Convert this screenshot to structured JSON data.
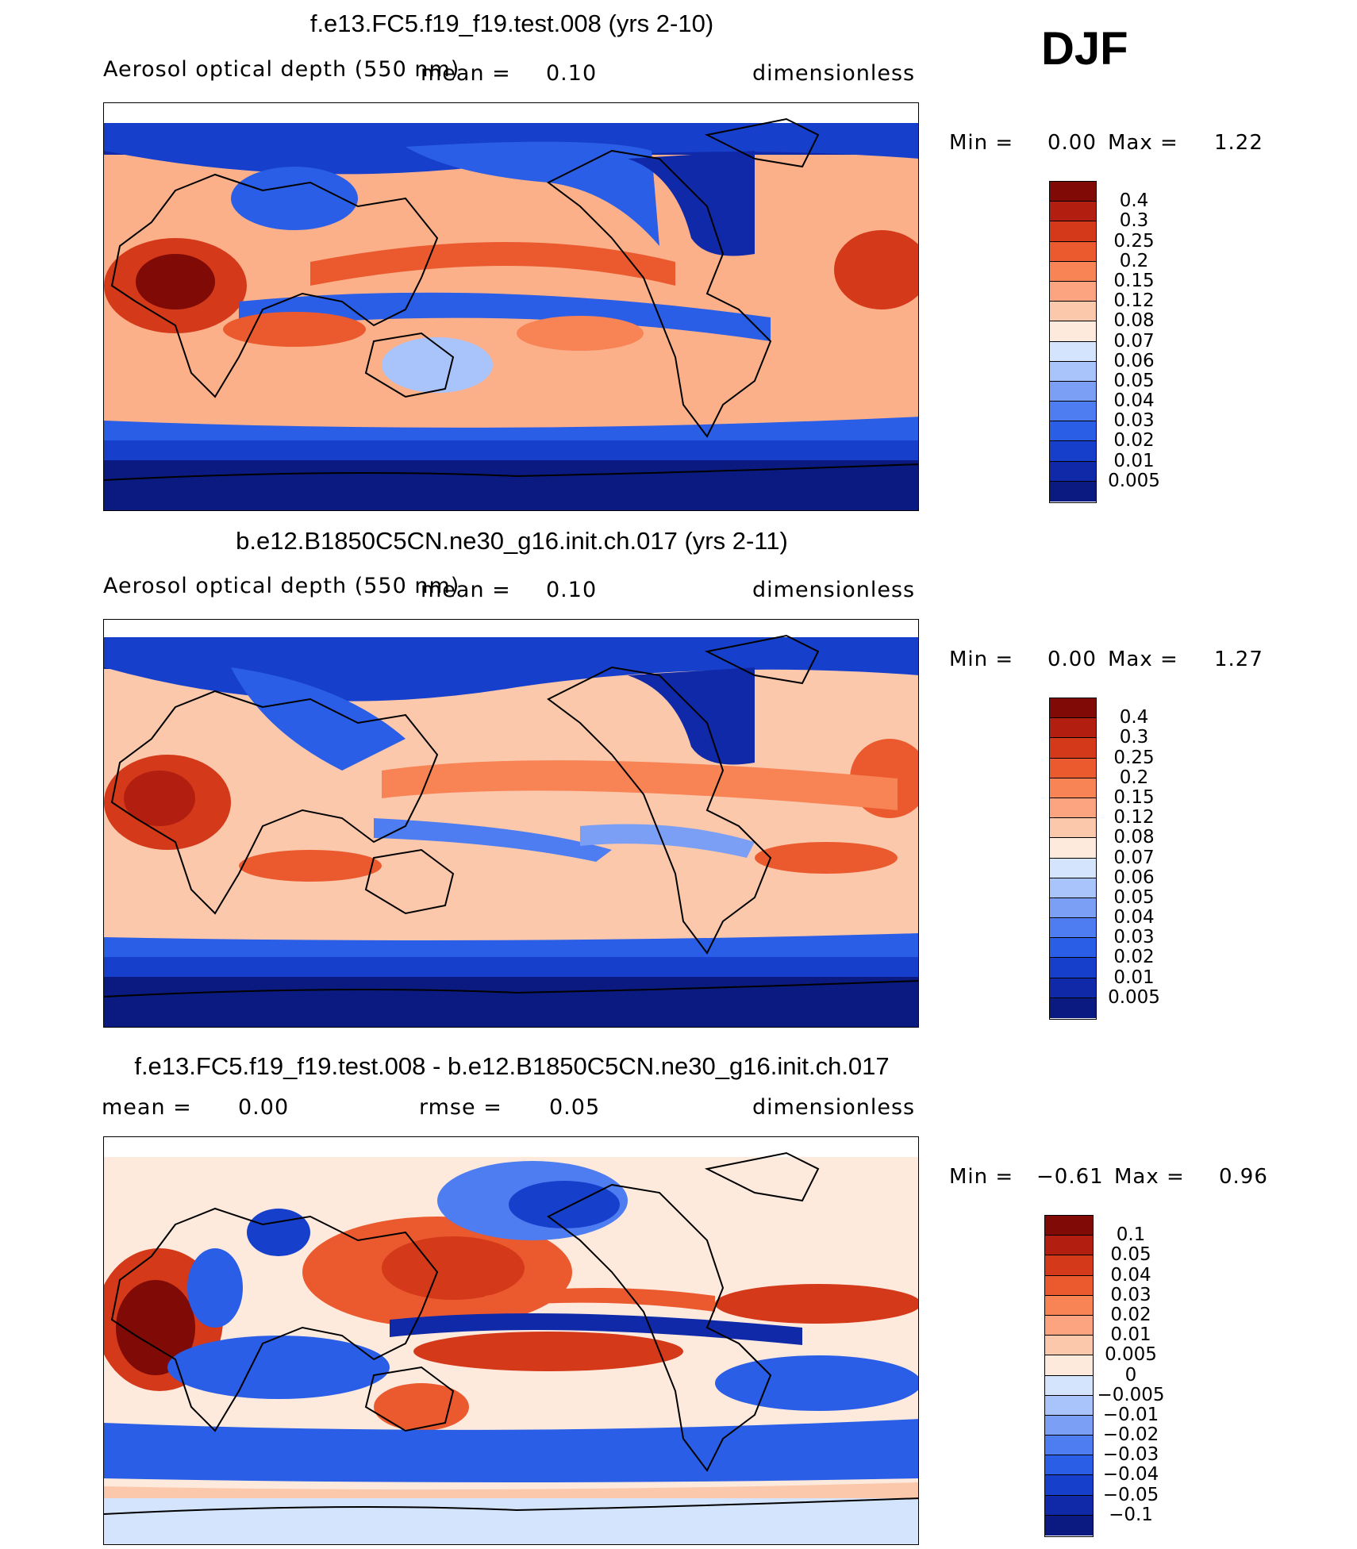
{
  "season": "DJF",
  "colors": {
    "abs": [
      "#0b1a80",
      "#1029a8",
      "#1640cc",
      "#2a5ee6",
      "#4d7df0",
      "#7a9ff5",
      "#a9c4fa",
      "#d4e4fc",
      "#fdeadd",
      "#fcc8ab",
      "#fba47f",
      "#f88355",
      "#eb5a2e",
      "#d4391a",
      "#b21e10",
      "#7f0a06"
    ],
    "diff": [
      "#0b1a80",
      "#1029a8",
      "#1640cc",
      "#2a5ee6",
      "#4d7df0",
      "#7a9ff5",
      "#a9c4fa",
      "#d4e4fc",
      "#fdeadd",
      "#fcc8ab",
      "#fba47f",
      "#f88355",
      "#eb5a2e",
      "#d4391a",
      "#b21e10",
      "#7f0a06"
    ]
  },
  "panels": [
    {
      "title": "f.e13.FC5.f19_f19.test.008 (yrs 2-10)",
      "variable": "Aerosol optical depth (550 nm)",
      "mean_label": "mean =",
      "mean_value": "0.10",
      "units": "dimensionless",
      "min_label": "Min =",
      "min_value": "0.00",
      "max_label": "Max =",
      "max_value": "1.22",
      "levels": [
        "0.4",
        "0.3",
        "0.25",
        "0.2",
        "0.15",
        "0.12",
        "0.08",
        "0.07",
        "0.06",
        "0.05",
        "0.04",
        "0.03",
        "0.02",
        "0.01",
        "0.005"
      ],
      "palette": "abs"
    },
    {
      "title": "b.e12.B1850C5CN.ne30_g16.init.ch.017 (yrs 2-11)",
      "variable": "Aerosol optical depth (550 nm)",
      "mean_label": "mean =",
      "mean_value": "0.10",
      "units": "dimensionless",
      "min_label": "Min =",
      "min_value": "0.00",
      "max_label": "Max =",
      "max_value": "1.27",
      "levels": [
        "0.4",
        "0.3",
        "0.25",
        "0.2",
        "0.15",
        "0.12",
        "0.08",
        "0.07",
        "0.06",
        "0.05",
        "0.04",
        "0.03",
        "0.02",
        "0.01",
        "0.005"
      ],
      "palette": "abs"
    },
    {
      "title": "f.e13.FC5.f19_f19.test.008 - b.e12.B1850C5CN.ne30_g16.init.ch.017",
      "mean_label": "mean =",
      "mean_value": "0.00",
      "rmse_label": "rmse =",
      "rmse_value": "0.05",
      "units": "dimensionless",
      "min_label": "Min =",
      "min_value": "−0.61",
      "max_label": "Max =",
      "max_value": "0.96",
      "levels": [
        "0.1",
        "0.05",
        "0.04",
        "0.03",
        "0.02",
        "0.01",
        "0.005",
        "0",
        "−0.005",
        "−0.01",
        "−0.02",
        "−0.03",
        "−0.04",
        "−0.05",
        "−0.1"
      ],
      "palette": "diff"
    }
  ]
}
